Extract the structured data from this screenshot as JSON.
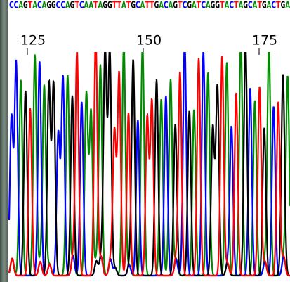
{
  "sequence": [
    "C",
    "C",
    "A",
    "G",
    "T",
    "A",
    "C",
    "A",
    "G",
    "G",
    "C",
    "C",
    "A",
    "G",
    "T",
    "C",
    "A",
    "A",
    "T",
    "A",
    "G",
    "G",
    "T",
    "T",
    "A",
    "T",
    "G",
    "C",
    "A",
    "T",
    "T",
    "G",
    "A",
    "C",
    "A",
    "G",
    "T",
    "C",
    "G",
    "A",
    "T",
    "C",
    "A",
    "G",
    "G",
    "T",
    "A",
    "C",
    "T",
    "A",
    "G",
    "C",
    "A",
    "T",
    "G",
    "A",
    "C",
    "T",
    "G",
    "A"
  ],
  "positions": [
    "125",
    "150",
    "175"
  ]
}
